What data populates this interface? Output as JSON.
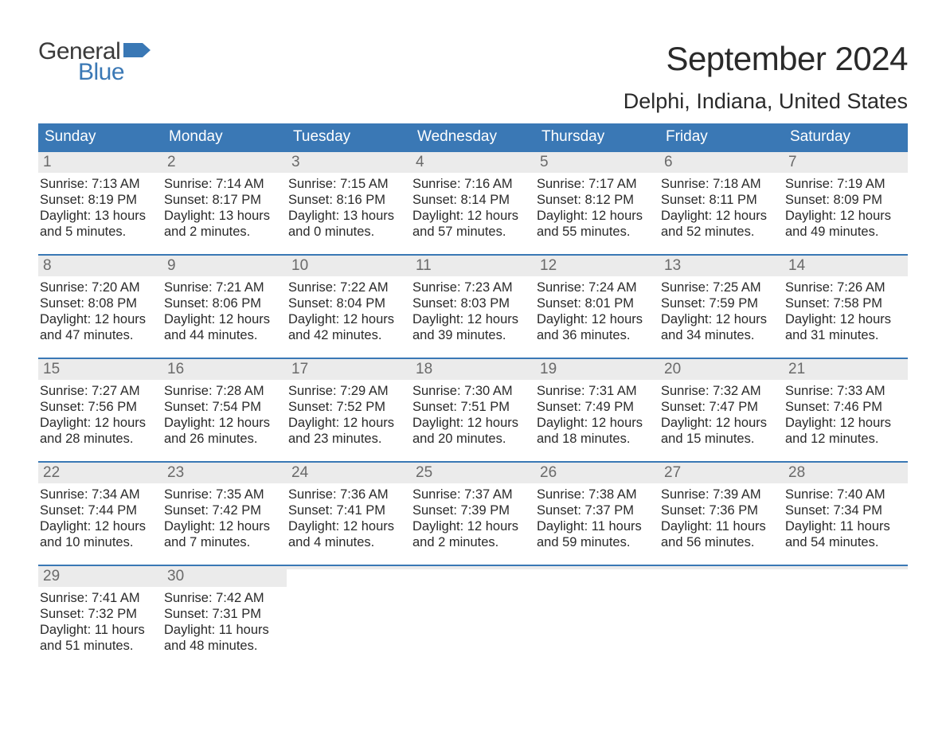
{
  "brand": {
    "text_general": "General",
    "text_blue": "Blue",
    "icon_color": "#3a78b5"
  },
  "title": {
    "month": "September 2024",
    "location": "Delphi, Indiana, United States"
  },
  "colors": {
    "header_bg": "#3a78b5",
    "header_text": "#ffffff",
    "daynum_bg": "#ebebeb",
    "daynum_text": "#6a6a6a",
    "body_text": "#2a2a2a",
    "week_border": "#3a78b5",
    "page_bg": "#ffffff"
  },
  "typography": {
    "title_month_fontsize": 42,
    "title_location_fontsize": 27,
    "dow_fontsize": 19,
    "daynum_fontsize": 19,
    "body_fontsize": 16.5
  },
  "days_of_week": [
    "Sunday",
    "Monday",
    "Tuesday",
    "Wednesday",
    "Thursday",
    "Friday",
    "Saturday"
  ],
  "weeks": [
    [
      {
        "n": "1",
        "sunrise": "Sunrise: 7:13 AM",
        "sunset": "Sunset: 8:19 PM",
        "daylight": "Daylight: 13 hours and 5 minutes."
      },
      {
        "n": "2",
        "sunrise": "Sunrise: 7:14 AM",
        "sunset": "Sunset: 8:17 PM",
        "daylight": "Daylight: 13 hours and 2 minutes."
      },
      {
        "n": "3",
        "sunrise": "Sunrise: 7:15 AM",
        "sunset": "Sunset: 8:16 PM",
        "daylight": "Daylight: 13 hours and 0 minutes."
      },
      {
        "n": "4",
        "sunrise": "Sunrise: 7:16 AM",
        "sunset": "Sunset: 8:14 PM",
        "daylight": "Daylight: 12 hours and 57 minutes."
      },
      {
        "n": "5",
        "sunrise": "Sunrise: 7:17 AM",
        "sunset": "Sunset: 8:12 PM",
        "daylight": "Daylight: 12 hours and 55 minutes."
      },
      {
        "n": "6",
        "sunrise": "Sunrise: 7:18 AM",
        "sunset": "Sunset: 8:11 PM",
        "daylight": "Daylight: 12 hours and 52 minutes."
      },
      {
        "n": "7",
        "sunrise": "Sunrise: 7:19 AM",
        "sunset": "Sunset: 8:09 PM",
        "daylight": "Daylight: 12 hours and 49 minutes."
      }
    ],
    [
      {
        "n": "8",
        "sunrise": "Sunrise: 7:20 AM",
        "sunset": "Sunset: 8:08 PM",
        "daylight": "Daylight: 12 hours and 47 minutes."
      },
      {
        "n": "9",
        "sunrise": "Sunrise: 7:21 AM",
        "sunset": "Sunset: 8:06 PM",
        "daylight": "Daylight: 12 hours and 44 minutes."
      },
      {
        "n": "10",
        "sunrise": "Sunrise: 7:22 AM",
        "sunset": "Sunset: 8:04 PM",
        "daylight": "Daylight: 12 hours and 42 minutes."
      },
      {
        "n": "11",
        "sunrise": "Sunrise: 7:23 AM",
        "sunset": "Sunset: 8:03 PM",
        "daylight": "Daylight: 12 hours and 39 minutes."
      },
      {
        "n": "12",
        "sunrise": "Sunrise: 7:24 AM",
        "sunset": "Sunset: 8:01 PM",
        "daylight": "Daylight: 12 hours and 36 minutes."
      },
      {
        "n": "13",
        "sunrise": "Sunrise: 7:25 AM",
        "sunset": "Sunset: 7:59 PM",
        "daylight": "Daylight: 12 hours and 34 minutes."
      },
      {
        "n": "14",
        "sunrise": "Sunrise: 7:26 AM",
        "sunset": "Sunset: 7:58 PM",
        "daylight": "Daylight: 12 hours and 31 minutes."
      }
    ],
    [
      {
        "n": "15",
        "sunrise": "Sunrise: 7:27 AM",
        "sunset": "Sunset: 7:56 PM",
        "daylight": "Daylight: 12 hours and 28 minutes."
      },
      {
        "n": "16",
        "sunrise": "Sunrise: 7:28 AM",
        "sunset": "Sunset: 7:54 PM",
        "daylight": "Daylight: 12 hours and 26 minutes."
      },
      {
        "n": "17",
        "sunrise": "Sunrise: 7:29 AM",
        "sunset": "Sunset: 7:52 PM",
        "daylight": "Daylight: 12 hours and 23 minutes."
      },
      {
        "n": "18",
        "sunrise": "Sunrise: 7:30 AM",
        "sunset": "Sunset: 7:51 PM",
        "daylight": "Daylight: 12 hours and 20 minutes."
      },
      {
        "n": "19",
        "sunrise": "Sunrise: 7:31 AM",
        "sunset": "Sunset: 7:49 PM",
        "daylight": "Daylight: 12 hours and 18 minutes."
      },
      {
        "n": "20",
        "sunrise": "Sunrise: 7:32 AM",
        "sunset": "Sunset: 7:47 PM",
        "daylight": "Daylight: 12 hours and 15 minutes."
      },
      {
        "n": "21",
        "sunrise": "Sunrise: 7:33 AM",
        "sunset": "Sunset: 7:46 PM",
        "daylight": "Daylight: 12 hours and 12 minutes."
      }
    ],
    [
      {
        "n": "22",
        "sunrise": "Sunrise: 7:34 AM",
        "sunset": "Sunset: 7:44 PM",
        "daylight": "Daylight: 12 hours and 10 minutes."
      },
      {
        "n": "23",
        "sunrise": "Sunrise: 7:35 AM",
        "sunset": "Sunset: 7:42 PM",
        "daylight": "Daylight: 12 hours and 7 minutes."
      },
      {
        "n": "24",
        "sunrise": "Sunrise: 7:36 AM",
        "sunset": "Sunset: 7:41 PM",
        "daylight": "Daylight: 12 hours and 4 minutes."
      },
      {
        "n": "25",
        "sunrise": "Sunrise: 7:37 AM",
        "sunset": "Sunset: 7:39 PM",
        "daylight": "Daylight: 12 hours and 2 minutes."
      },
      {
        "n": "26",
        "sunrise": "Sunrise: 7:38 AM",
        "sunset": "Sunset: 7:37 PM",
        "daylight": "Daylight: 11 hours and 59 minutes."
      },
      {
        "n": "27",
        "sunrise": "Sunrise: 7:39 AM",
        "sunset": "Sunset: 7:36 PM",
        "daylight": "Daylight: 11 hours and 56 minutes."
      },
      {
        "n": "28",
        "sunrise": "Sunrise: 7:40 AM",
        "sunset": "Sunset: 7:34 PM",
        "daylight": "Daylight: 11 hours and 54 minutes."
      }
    ],
    [
      {
        "n": "29",
        "sunrise": "Sunrise: 7:41 AM",
        "sunset": "Sunset: 7:32 PM",
        "daylight": "Daylight: 11 hours and 51 minutes."
      },
      {
        "n": "30",
        "sunrise": "Sunrise: 7:42 AM",
        "sunset": "Sunset: 7:31 PM",
        "daylight": "Daylight: 11 hours and 48 minutes."
      },
      {
        "n": "",
        "sunrise": "",
        "sunset": "",
        "daylight": "",
        "empty": true
      },
      {
        "n": "",
        "sunrise": "",
        "sunset": "",
        "daylight": "",
        "empty": true
      },
      {
        "n": "",
        "sunrise": "",
        "sunset": "",
        "daylight": "",
        "empty": true
      },
      {
        "n": "",
        "sunrise": "",
        "sunset": "",
        "daylight": "",
        "empty": true
      },
      {
        "n": "",
        "sunrise": "",
        "sunset": "",
        "daylight": "",
        "empty": true
      }
    ]
  ]
}
